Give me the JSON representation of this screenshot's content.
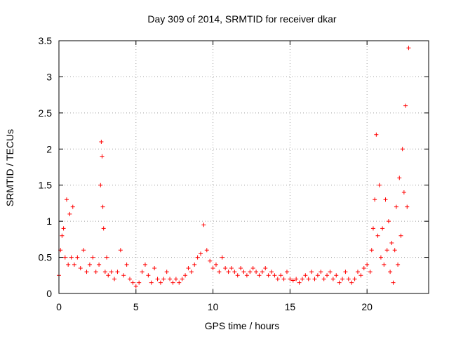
{
  "chart_data": {
    "type": "scatter",
    "title": "Day 309 of 2014, SRMTID for receiver dkar",
    "xlabel": "GPS time / hours",
    "ylabel": "SRMTID / TECUs",
    "xlim": [
      0,
      24
    ],
    "ylim": [
      0,
      3.5
    ],
    "xticks": [
      0,
      5,
      10,
      15,
      20
    ],
    "xtick_labels": [
      "0",
      "5",
      "10",
      "15",
      "20"
    ],
    "yticks": [
      0,
      0.5,
      1,
      1.5,
      2,
      2.5,
      3,
      3.5
    ],
    "ytick_labels": [
      "0",
      "0.5",
      "1",
      "1.5",
      "2",
      "2.5",
      "3",
      "3.5"
    ],
    "grid": true,
    "marker": "+",
    "series": [
      {
        "name": "SRMTID",
        "color": "#ff0000",
        "x": [
          0.0,
          0.1,
          0.2,
          0.3,
          0.4,
          0.5,
          0.6,
          0.7,
          0.8,
          0.9,
          1.0,
          1.2,
          1.4,
          1.6,
          1.8,
          2.0,
          2.2,
          2.4,
          2.6,
          2.7,
          2.75,
          2.8,
          2.85,
          2.9,
          3.0,
          3.1,
          3.2,
          3.4,
          3.6,
          3.8,
          4.0,
          4.2,
          4.4,
          4.6,
          4.8,
          5.0,
          5.2,
          5.4,
          5.6,
          5.8,
          6.0,
          6.2,
          6.4,
          6.6,
          6.8,
          7.0,
          7.2,
          7.4,
          7.6,
          7.8,
          8.0,
          8.2,
          8.4,
          8.6,
          8.8,
          9.0,
          9.2,
          9.4,
          9.6,
          9.8,
          10.0,
          10.2,
          10.4,
          10.6,
          10.8,
          11.0,
          11.2,
          11.4,
          11.6,
          11.8,
          12.0,
          12.2,
          12.4,
          12.6,
          12.8,
          13.0,
          13.2,
          13.4,
          13.6,
          13.8,
          14.0,
          14.2,
          14.4,
          14.6,
          14.8,
          15.0,
          15.2,
          15.4,
          15.6,
          15.8,
          16.0,
          16.2,
          16.4,
          16.6,
          16.8,
          17.0,
          17.2,
          17.4,
          17.6,
          17.8,
          18.0,
          18.2,
          18.4,
          18.6,
          18.8,
          19.0,
          19.2,
          19.4,
          19.6,
          19.8,
          20.0,
          20.2,
          20.3,
          20.4,
          20.5,
          20.6,
          20.7,
          20.8,
          20.9,
          21.0,
          21.1,
          21.2,
          21.3,
          21.4,
          21.5,
          21.6,
          21.7,
          21.8,
          21.9,
          22.0,
          22.1,
          22.2,
          22.3,
          22.4,
          22.5,
          22.6,
          22.7
        ],
        "y": [
          0.25,
          0.6,
          0.8,
          0.9,
          0.5,
          1.3,
          0.4,
          1.1,
          0.5,
          1.2,
          0.4,
          0.5,
          0.35,
          0.6,
          0.3,
          0.4,
          0.5,
          0.3,
          0.4,
          1.5,
          2.1,
          1.9,
          1.2,
          0.9,
          0.3,
          0.5,
          0.25,
          0.3,
          0.2,
          0.3,
          0.6,
          0.25,
          0.4,
          0.2,
          0.15,
          0.1,
          0.15,
          0.3,
          0.4,
          0.25,
          0.15,
          0.35,
          0.2,
          0.15,
          0.2,
          0.3,
          0.2,
          0.15,
          0.2,
          0.15,
          0.2,
          0.25,
          0.35,
          0.3,
          0.4,
          0.5,
          0.55,
          0.95,
          0.6,
          0.45,
          0.35,
          0.4,
          0.3,
          0.5,
          0.35,
          0.3,
          0.35,
          0.3,
          0.25,
          0.35,
          0.3,
          0.25,
          0.3,
          0.35,
          0.3,
          0.25,
          0.3,
          0.35,
          0.25,
          0.3,
          0.25,
          0.2,
          0.25,
          0.2,
          0.3,
          0.2,
          0.18,
          0.2,
          0.15,
          0.2,
          0.25,
          0.2,
          0.3,
          0.2,
          0.25,
          0.3,
          0.2,
          0.25,
          0.3,
          0.2,
          0.25,
          0.15,
          0.2,
          0.3,
          0.2,
          0.15,
          0.2,
          0.3,
          0.25,
          0.35,
          0.4,
          0.3,
          0.6,
          0.9,
          1.3,
          2.2,
          0.8,
          1.5,
          0.5,
          0.9,
          0.4,
          1.3,
          0.6,
          1.0,
          0.3,
          0.7,
          0.15,
          0.6,
          1.2,
          0.4,
          1.6,
          0.8,
          2.0,
          1.4,
          2.6,
          1.2,
          3.4
        ]
      }
    ]
  }
}
